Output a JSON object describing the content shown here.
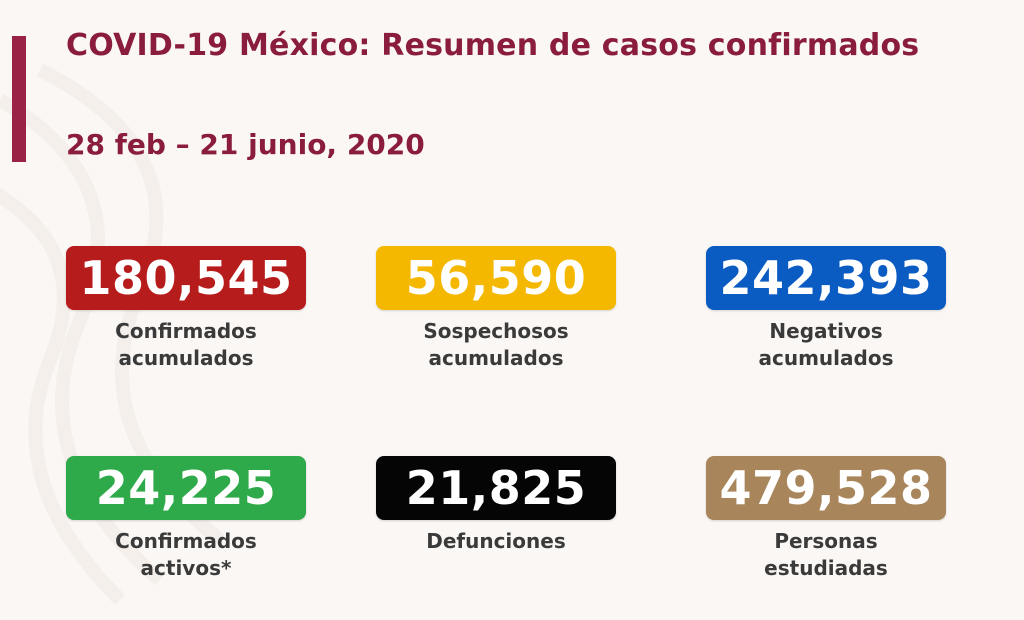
{
  "header": {
    "title": "COVID-19 México: Resumen de casos confirmados",
    "date_range": "28 feb – 21 junio, 2020"
  },
  "colors": {
    "accent": "#9b2247",
    "title_text": "#8a1c3d"
  },
  "stats": [
    {
      "value": "180,545",
      "label": "Confirmados\nacumulados",
      "color": "#b71c1c"
    },
    {
      "value": "56,590",
      "label": "Sospechosos\nacumulados",
      "color": "#f5b800"
    },
    {
      "value": "242,393",
      "label": "Negativos\nacumulados",
      "color": "#0a5cc2"
    },
    {
      "value": "24,225",
      "label": "Confirmados\nactivos*",
      "color": "#2eaa4a"
    },
    {
      "value": "21,825",
      "label": "Defunciones",
      "color": "#050505"
    },
    {
      "value": "479,528",
      "label": "Personas\nestudiadas",
      "color": "#a8855a"
    }
  ]
}
